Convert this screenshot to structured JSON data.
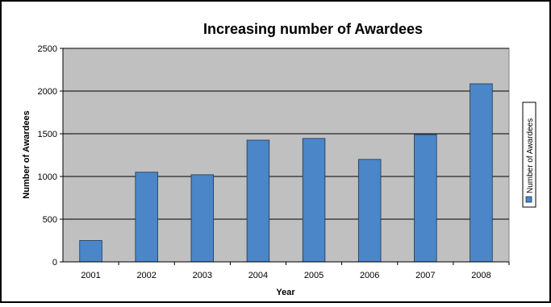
{
  "chart_data": {
    "type": "bar",
    "title": "Increasing number of Awardees",
    "xlabel": "Year",
    "ylabel": "Number of Awardees",
    "categories": [
      "2001",
      "2002",
      "2003",
      "2004",
      "2005",
      "2006",
      "2007",
      "2008"
    ],
    "series": [
      {
        "name": "Number of Awardees",
        "values": [
          250,
          1050,
          1020,
          1425,
          1445,
          1200,
          1490,
          2085
        ]
      }
    ],
    "ylim": [
      0,
      2500
    ],
    "yticks": [
      0,
      500,
      1000,
      1500,
      2000,
      2500
    ],
    "grid": true,
    "legend": "right",
    "colors": {
      "bar": "#4a86c8",
      "bar_stroke": "#1f3550",
      "plot_background": "#c0c0c0",
      "gridline": "#000000"
    }
  }
}
